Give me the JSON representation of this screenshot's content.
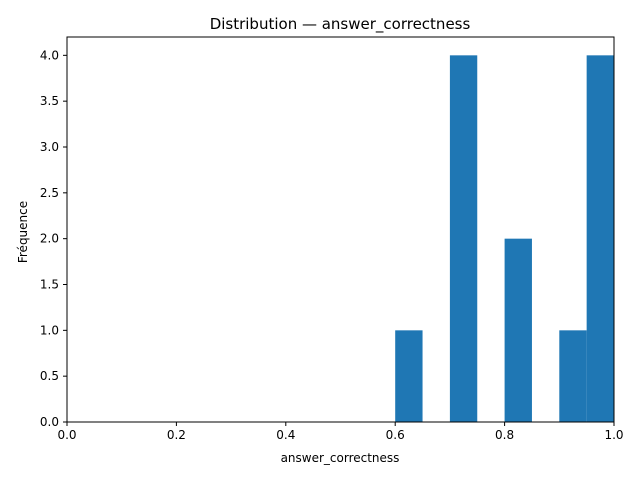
{
  "chart_data": {
    "type": "bar",
    "title": "Distribution — answer_correctness",
    "xlabel": "answer_correctness",
    "ylabel": "Fréquence",
    "xlim": [
      0.0,
      1.0
    ],
    "ylim": [
      0.0,
      4.2
    ],
    "grid": false,
    "bar_color": "#1f77b4",
    "bins": [
      {
        "x_start": 0.6,
        "x_end": 0.65,
        "count": 1
      },
      {
        "x_start": 0.7,
        "x_end": 0.75,
        "count": 4
      },
      {
        "x_start": 0.8,
        "x_end": 0.85,
        "count": 2
      },
      {
        "x_start": 0.9,
        "x_end": 0.95,
        "count": 1
      },
      {
        "x_start": 0.95,
        "x_end": 1.0,
        "count": 4
      }
    ],
    "x_ticks": [
      {
        "value": 0.0,
        "label": "0.0"
      },
      {
        "value": 0.2,
        "label": "0.2"
      },
      {
        "value": 0.4,
        "label": "0.4"
      },
      {
        "value": 0.6,
        "label": "0.6"
      },
      {
        "value": 0.8,
        "label": "0.8"
      },
      {
        "value": 1.0,
        "label": "1.0"
      }
    ],
    "y_ticks": [
      {
        "value": 0.0,
        "label": "0.0"
      },
      {
        "value": 0.5,
        "label": "0.5"
      },
      {
        "value": 1.0,
        "label": "1.0"
      },
      {
        "value": 1.5,
        "label": "1.5"
      },
      {
        "value": 2.0,
        "label": "2.0"
      },
      {
        "value": 2.5,
        "label": "2.5"
      },
      {
        "value": 3.0,
        "label": "3.0"
      },
      {
        "value": 3.5,
        "label": "3.5"
      },
      {
        "value": 4.0,
        "label": "4.0"
      }
    ]
  }
}
